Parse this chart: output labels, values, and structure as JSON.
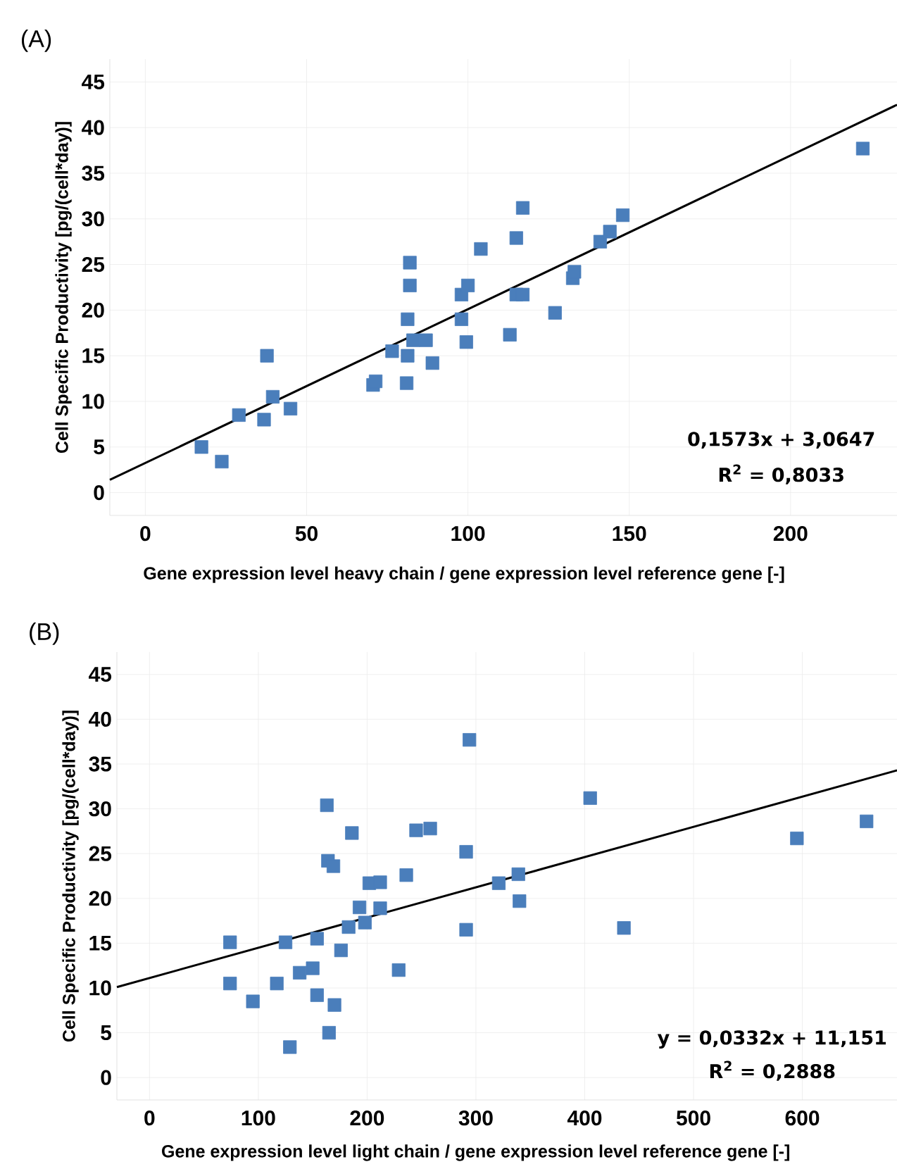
{
  "chart_data": [
    {
      "type": "scatter",
      "title": "(A)",
      "xlabel": "Gene expression level heavy chain / gene expression level reference gene  [-]",
      "ylabel": "Cell Specific Productivity [pg/(cell*day)]",
      "annotations": [
        "0,1573x + 3,0647",
        "R$^{2}$ = 0,8033"
      ],
      "xlim": [
        -11,
        233
      ],
      "ylim": [
        -2.5,
        47.5
      ],
      "xticks": [
        0,
        50,
        100,
        150,
        200
      ],
      "yticks": [
        0,
        5,
        10,
        15,
        20,
        25,
        30,
        35,
        40,
        45
      ],
      "grid": true,
      "series": [
        {
          "marker": "square",
          "color": "#4a7ebb",
          "x": [
            17.4,
            23.7,
            29,
            36.8,
            37.7,
            39.5,
            45,
            70.6,
            71.4,
            76.5,
            81,
            81.3,
            81.3,
            82,
            82,
            83,
            87,
            89,
            98,
            98,
            99.5,
            100,
            104,
            113,
            115,
            115,
            117,
            117,
            127,
            132.5,
            133,
            141,
            144,
            148,
            222.4
          ],
          "values": [
            5,
            3.4,
            8.5,
            8,
            15,
            10.5,
            9.2,
            11.8,
            12.2,
            15.5,
            12,
            15,
            19,
            22.7,
            25.2,
            16.7,
            16.7,
            14.2,
            19,
            21.7,
            16.5,
            22.7,
            26.7,
            17.3,
            27.9,
            21.7,
            31.2,
            21.7,
            19.7,
            23.5,
            24.2,
            27.5,
            28.6,
            30.4,
            37.7
          ]
        },
        {
          "type": "line",
          "marker": "none",
          "color": "#000000",
          "x": [
            -11,
            233
          ],
          "values": [
            1.4,
            42.5
          ]
        }
      ]
    },
    {
      "type": "scatter",
      "title": "(B)",
      "xlabel": "Gene expression level light chain / gene expression level reference gene  [-]",
      "ylabel": "Cell Specific Productivity [pg/(cell*day)]",
      "annotations": [
        "y = 0,0332x + 11,151",
        "R$^{2}$ = 0,2888"
      ],
      "xlim": [
        -30,
        687
      ],
      "ylim": [
        -2.5,
        47.5
      ],
      "xticks": [
        0,
        100,
        200,
        300,
        400,
        500,
        600
      ],
      "yticks": [
        0,
        5,
        10,
        15,
        20,
        25,
        30,
        35,
        40,
        45
      ],
      "grid": true,
      "series": [
        {
          "marker": "square",
          "color": "#4a7ebb",
          "x": [
            294,
            405,
            163,
            659,
            595,
            258,
            245,
            186,
            291,
            164,
            169,
            236,
            339,
            321,
            202,
            212,
            340,
            193,
            212,
            198,
            183,
            291,
            436,
            74,
            125,
            154,
            176,
            150,
            138,
            229,
            74,
            117,
            95,
            154,
            170,
            165,
            129
          ],
          "values": [
            37.7,
            31.2,
            30.4,
            28.6,
            26.7,
            27.8,
            27.6,
            27.3,
            25.2,
            24.2,
            23.6,
            22.6,
            22.7,
            21.7,
            21.7,
            21.8,
            19.7,
            19,
            18.9,
            17.3,
            16.8,
            16.5,
            16.7,
            15.1,
            15.1,
            15.5,
            14.2,
            12.2,
            11.7,
            12,
            10.5,
            10.5,
            8.5,
            9.2,
            8.1,
            5,
            3.4
          ]
        },
        {
          "type": "line",
          "marker": "none",
          "color": "#000000",
          "x": [
            -30,
            687
          ],
          "values": [
            10.1,
            34.3
          ]
        }
      ]
    }
  ]
}
